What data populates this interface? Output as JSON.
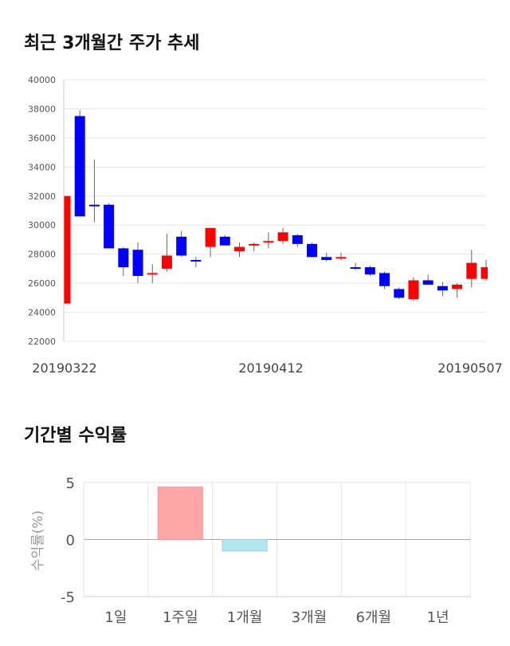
{
  "sections": {
    "price_trend_title": "최근 3개월간 주가 추세",
    "returns_title": "기간별 수익률"
  },
  "colors": {
    "up": "#ff0000",
    "down": "#0000ff",
    "positive_bar": "#ffa6a6",
    "negative_bar": "#b3e7f0",
    "grid": "#e6e6e6"
  },
  "chart_data": [
    {
      "type": "candlestick",
      "title": "최근 3개월간 주가 추세",
      "ylim": [
        22000,
        40000
      ],
      "y_ticks": [
        "22000",
        "24000",
        "26000",
        "28000",
        "30000",
        "32000",
        "34000",
        "36000",
        "38000",
        "40000"
      ],
      "x_tick_labels": [
        "20190322",
        "20190412",
        "20190507"
      ],
      "grid": true,
      "candles": [
        {
          "o": 24600,
          "h": 32000,
          "l": 24600,
          "c": 32000
        },
        {
          "o": 37500,
          "h": 37900,
          "l": 30600,
          "c": 30600
        },
        {
          "o": 31400,
          "h": 34500,
          "l": 30200,
          "c": 31300
        },
        {
          "o": 31400,
          "h": 31500,
          "l": 28400,
          "c": 28400
        },
        {
          "o": 28400,
          "h": 28500,
          "l": 26500,
          "c": 27100
        },
        {
          "o": 28300,
          "h": 28800,
          "l": 26000,
          "c": 26500
        },
        {
          "o": 26700,
          "h": 27300,
          "l": 26000,
          "c": 26700
        },
        {
          "o": 27000,
          "h": 29400,
          "l": 26800,
          "c": 27900
        },
        {
          "o": 29200,
          "h": 29600,
          "l": 27800,
          "c": 27900
        },
        {
          "o": 27600,
          "h": 27800,
          "l": 27100,
          "c": 27500
        },
        {
          "o": 28500,
          "h": 29800,
          "l": 27800,
          "c": 29800
        },
        {
          "o": 29200,
          "h": 29300,
          "l": 28600,
          "c": 28600
        },
        {
          "o": 28200,
          "h": 28800,
          "l": 27800,
          "c": 28500
        },
        {
          "o": 28600,
          "h": 28800,
          "l": 28200,
          "c": 28700
        },
        {
          "o": 28800,
          "h": 29500,
          "l": 28400,
          "c": 28900
        },
        {
          "o": 28900,
          "h": 29800,
          "l": 28700,
          "c": 29500
        },
        {
          "o": 29300,
          "h": 29400,
          "l": 28500,
          "c": 28700
        },
        {
          "o": 28700,
          "h": 28800,
          "l": 27800,
          "c": 27800
        },
        {
          "o": 27800,
          "h": 28100,
          "l": 27500,
          "c": 27600
        },
        {
          "o": 27700,
          "h": 28100,
          "l": 27600,
          "c": 27800
        },
        {
          "o": 27100,
          "h": 27400,
          "l": 26900,
          "c": 27000
        },
        {
          "o": 27100,
          "h": 27200,
          "l": 26500,
          "c": 26600
        },
        {
          "o": 26700,
          "h": 26800,
          "l": 25600,
          "c": 25800
        },
        {
          "o": 25600,
          "h": 25700,
          "l": 24900,
          "c": 25000
        },
        {
          "o": 24900,
          "h": 26400,
          "l": 24800,
          "c": 26200
        },
        {
          "o": 26200,
          "h": 26600,
          "l": 25900,
          "c": 25900
        },
        {
          "o": 25800,
          "h": 26100,
          "l": 25100,
          "c": 25500
        },
        {
          "o": 25600,
          "h": 26000,
          "l": 25000,
          "c": 25900
        },
        {
          "o": 26300,
          "h": 28300,
          "l": 25700,
          "c": 27400
        },
        {
          "o": 26300,
          "h": 27600,
          "l": 26200,
          "c": 27100
        }
      ]
    },
    {
      "type": "bar",
      "title": "기간별 수익률",
      "ylabel": "수익률(%)",
      "ylim": [
        -5,
        5
      ],
      "y_ticks": [
        "-5",
        "0",
        "5"
      ],
      "categories": [
        "1일",
        "1주일",
        "1개월",
        "3개월",
        "6개월",
        "1년"
      ],
      "values": [
        0,
        4.6,
        -1.0,
        0,
        0,
        0
      ],
      "grid": true
    }
  ]
}
